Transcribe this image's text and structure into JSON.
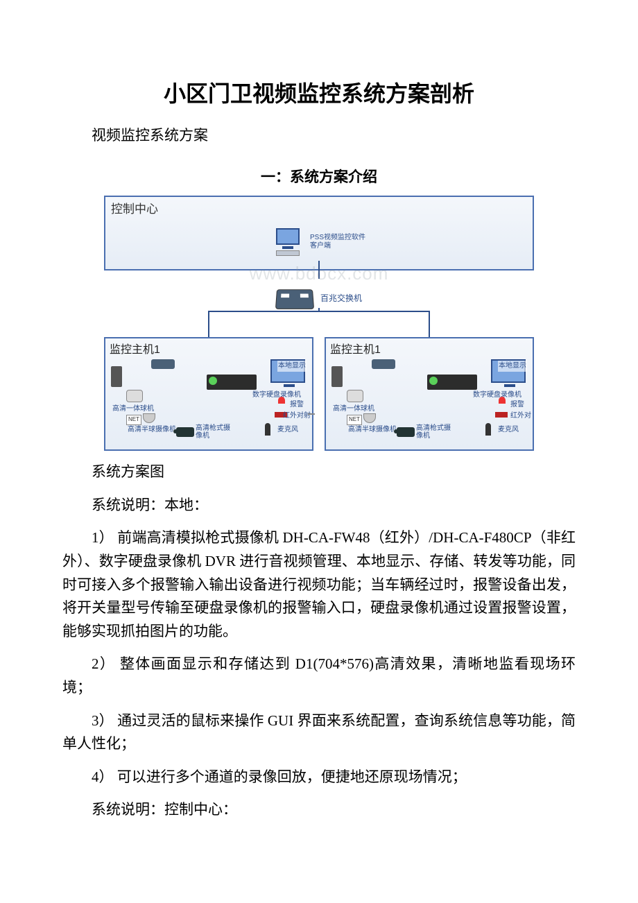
{
  "title": "小区门卫视频监控系统方案剖析",
  "subtitle": "视频监控系统方案",
  "section1_heading": "一：系统方案介绍",
  "diagram": {
    "control_center": "控制中心",
    "pss_label": "PSS视频监控软件客户端",
    "switch_label": "百兆交换机",
    "host_title": "监控主机1",
    "local_display": "本地显示",
    "dvr": "数字硬盘录像机",
    "alarm": "报警",
    "ir": "红外对射",
    "ir_short": "红外对",
    "mic": "麦克风",
    "ptz": "高清一体球机",
    "dome": "高清半球摄像机",
    "bullet_left": "高清枪式摄像机",
    "bullet_right": "高清枪式摄像机",
    "net": "NET",
    "watermark": "www.bdocx.com"
  },
  "caption": "系统方案图",
  "local_heading": "系统说明：本地：",
  "p1": "1） 前端高清模拟枪式摄像机 DH-CA-FW48（红外）/DH-CA-F480CP（非红外）、数字硬盘录像机 DVR 进行音视频管理、本地显示、存储、转发等功能，同时可接入多个报警输入输出设备进行视频功能；当车辆经过时，报警设备出发，将开关量型号传输至硬盘录像机的报警输入口，硬盘录像机通过设置报警设置，能够实现抓拍图片的功能。",
  "p2": "2） 整体画面显示和存储达到 D1(704*576)高清效果，清晰地监看现场环境；",
  "p3": "3） 通过灵活的鼠标来操作 GUI 界面来系统配置，查询系统信息等功能，简单人性化；",
  "p4": "4） 可以进行多个通道的录像回放，便捷地还原现场情况；",
  "center_heading": "系统说明：控制中心："
}
